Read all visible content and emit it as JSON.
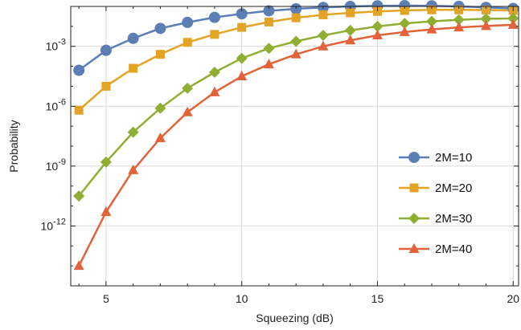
{
  "chart_data": {
    "type": "line",
    "xlabel": "Squeezing (dB)",
    "ylabel": "Probability",
    "y_scale": "log",
    "xlim": [
      3.7,
      20.2
    ],
    "ylim": [
      -15.0,
      -1.0
    ],
    "x_ticks": [
      {
        "value": 5,
        "label": "5"
      },
      {
        "value": 10,
        "label": "10"
      },
      {
        "value": 15,
        "label": "15"
      },
      {
        "value": 20,
        "label": "20"
      }
    ],
    "y_ticks": [
      {
        "exp": -3,
        "base": "10",
        "sup": "-3"
      },
      {
        "exp": -6,
        "base": "10",
        "sup": "-6"
      },
      {
        "exp": -9,
        "base": "10",
        "sup": "-9"
      },
      {
        "exp": -12,
        "base": "10",
        "sup": "-12"
      }
    ],
    "grid": true,
    "legend_position": "right",
    "x": [
      4,
      5,
      6,
      7,
      8,
      9,
      10,
      11,
      12,
      13,
      14,
      15,
      16,
      17,
      18,
      19,
      20
    ],
    "series": [
      {
        "name": "2M=10",
        "color": "#5b7fb5",
        "marker": "circle",
        "log10_values": [
          -4.2,
          -3.2,
          -2.6,
          -2.1,
          -1.8,
          -1.55,
          -1.37,
          -1.22,
          -1.12,
          -1.05,
          -1.0,
          -0.97,
          -0.96,
          -0.97,
          -1.0,
          -1.05,
          -1.1
        ]
      },
      {
        "name": "2M=20",
        "color": "#e3a325",
        "marker": "square",
        "log10_values": [
          -6.2,
          -5.0,
          -4.1,
          -3.4,
          -2.8,
          -2.4,
          -2.05,
          -1.78,
          -1.57,
          -1.42,
          -1.32,
          -1.25,
          -1.2,
          -1.17,
          -1.17,
          -1.18,
          -1.2
        ]
      },
      {
        "name": "2M=30",
        "color": "#8fae32",
        "marker": "diamond",
        "log10_values": [
          -10.5,
          -8.8,
          -7.3,
          -6.1,
          -5.1,
          -4.3,
          -3.6,
          -3.1,
          -2.75,
          -2.45,
          -2.2,
          -2.0,
          -1.85,
          -1.75,
          -1.67,
          -1.62,
          -1.6
        ]
      },
      {
        "name": "2M=40",
        "color": "#e2623a",
        "marker": "triangle",
        "log10_values": [
          -14.0,
          -11.3,
          -9.2,
          -7.6,
          -6.3,
          -5.3,
          -4.5,
          -3.9,
          -3.4,
          -3.0,
          -2.7,
          -2.45,
          -2.28,
          -2.15,
          -2.05,
          -1.98,
          -1.92
        ]
      }
    ]
  }
}
